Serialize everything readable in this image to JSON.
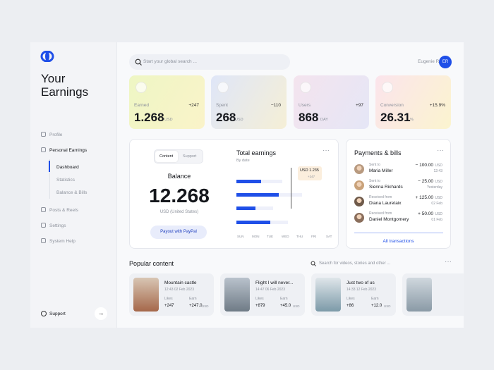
{
  "sidebar": {
    "title": "Your Earnings",
    "nav_top": [
      "Profile",
      "Personal Earnings"
    ],
    "subnav": [
      "Dashboard",
      "Statistics",
      "Balance & Bills"
    ],
    "nav_bottom": [
      "Posts & Reels",
      "Settings",
      "System Help"
    ],
    "support": "Support"
  },
  "header": {
    "search": "Start your global search ...",
    "user": "Eugenie R.",
    "initials": "ER"
  },
  "stats": [
    {
      "label": "Earned",
      "delta": "+247",
      "value": "1.268",
      "unit": "USD"
    },
    {
      "label": "Spent",
      "delta": "−110",
      "value": "268",
      "unit": "USD"
    },
    {
      "label": "Users",
      "delta": "+97",
      "value": "868",
      "unit": "DAY"
    },
    {
      "label": "Conversion",
      "delta": "+15.9%",
      "value": "26.31",
      "unit": "%"
    }
  ],
  "balance": {
    "tabs": [
      "Content",
      "Support"
    ],
    "title": "Balance",
    "amount": "12.268",
    "currency": "USD (United States)",
    "button": "Payout with PayPal"
  },
  "earnings": {
    "title": "Total earnings",
    "filter": "By date",
    "tooltip": "USD 1.235",
    "tooltip_delta": "+247",
    "days": [
      "SUN",
      "MON",
      "TUE",
      "WED",
      "THU",
      "FRI",
      "SAT"
    ]
  },
  "payments": {
    "title": "Payments & bills",
    "items": [
      {
        "action": "Sent to",
        "name": "Maria Miller",
        "amount": "− 100.00",
        "currency": "USD",
        "time": "12:43"
      },
      {
        "action": "Sent to",
        "name": "Sienna Richards",
        "amount": "− 25.00",
        "currency": "USD",
        "time": "Yesterday"
      },
      {
        "action": "Received from",
        "name": "Diana Lauretaix",
        "amount": "+ 125.00",
        "currency": "USD",
        "time": "02 Feb"
      },
      {
        "action": "Received from",
        "name": "Daniel Montgomery",
        "amount": "+ 50.00",
        "currency": "USD",
        "time": "01 Feb"
      }
    ],
    "link": "All transactions"
  },
  "popular": {
    "title": "Popular content",
    "search": "Search for videos, stories and other ...",
    "likes_label": "Likes",
    "earn_label": "Earn",
    "items": [
      {
        "title": "Mountain castle",
        "date": "12:43 02 Feb 2023",
        "likes": "+247",
        "earn": "+247.0",
        "currency": "USD"
      },
      {
        "title": "Flight I will never...",
        "date": "14:47 06 Feb 2023",
        "likes": "+879",
        "earn": "+45.0",
        "currency": "USD"
      },
      {
        "title": "Just two of us",
        "date": "14:33 12 Feb 2023",
        "likes": "+86",
        "earn": "+12.0",
        "currency": "USD"
      }
    ]
  }
}
